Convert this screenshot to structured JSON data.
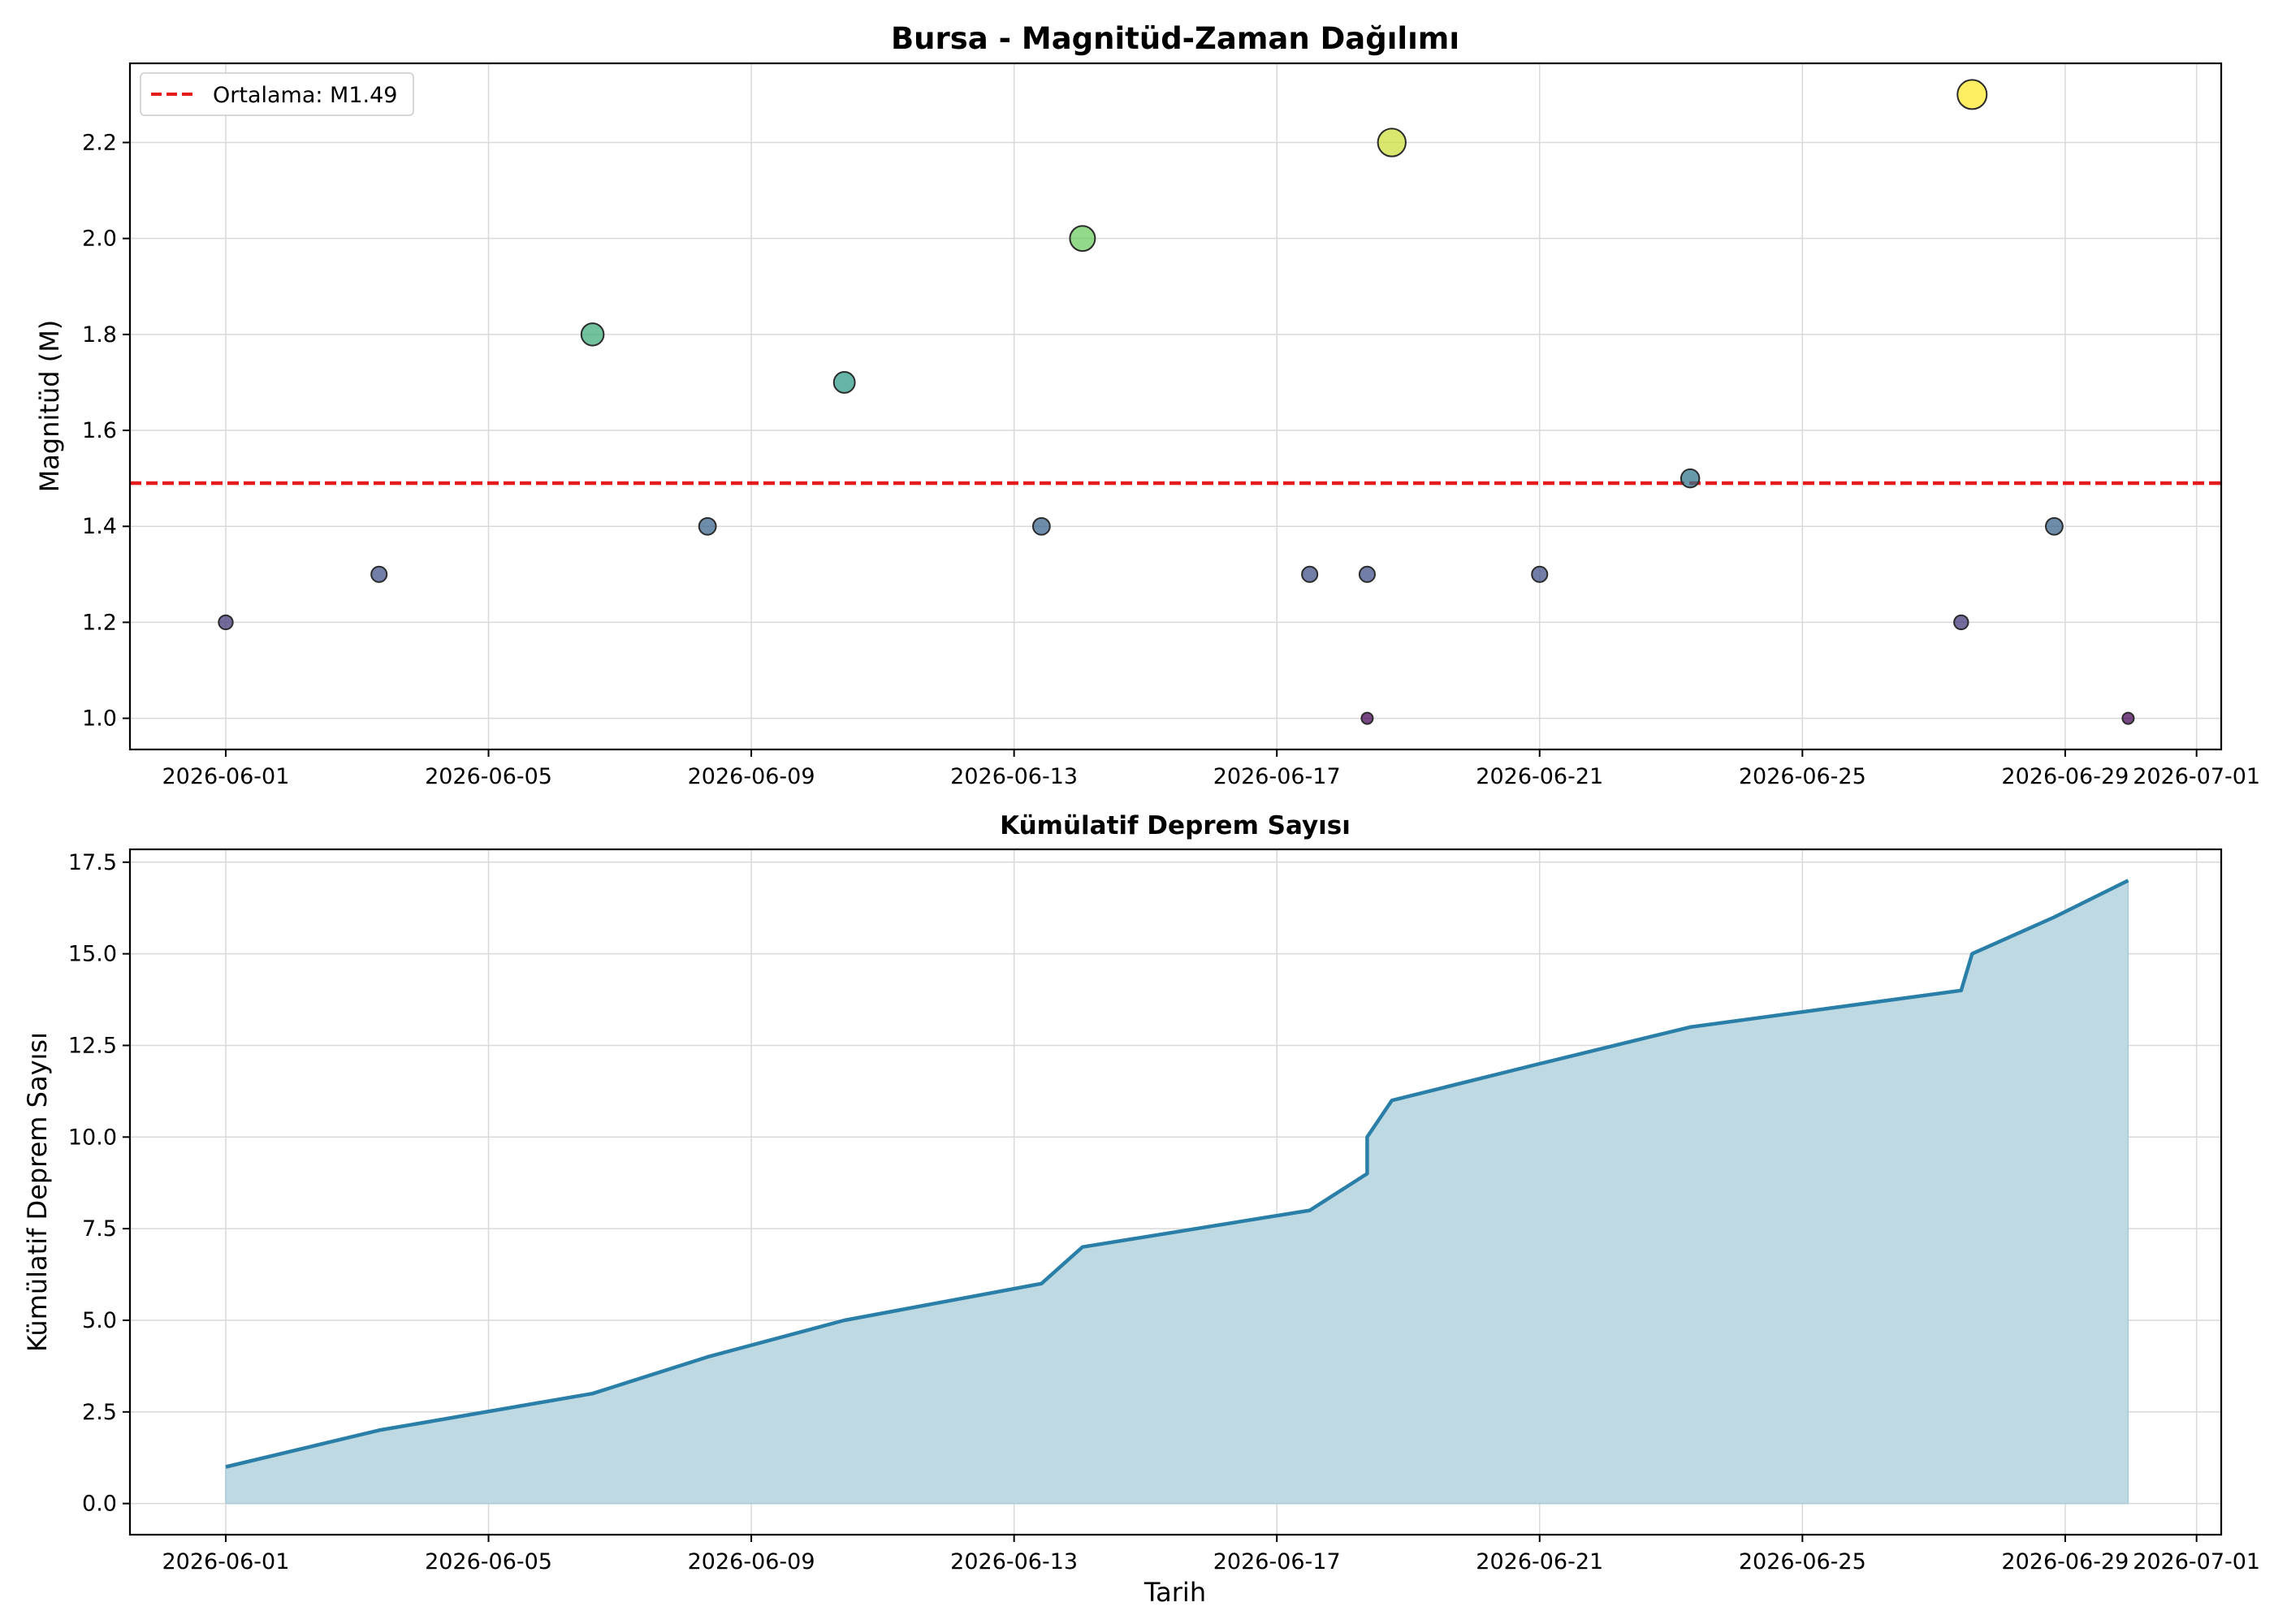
{
  "chart_data": [
    {
      "type": "scatter",
      "title": "Bursa - Magnitüd-Zaman Dağılımı",
      "xlabel": "",
      "ylabel": "Magnitüd (M)",
      "x_ticks": [
        "2026-06-01",
        "2026-06-05",
        "2026-06-09",
        "2026-06-13",
        "2026-06-17",
        "2026-06-21",
        "2026-06-25",
        "2026-06-29",
        "2026-07-01"
      ],
      "y_ticks": [
        "1.0",
        "1.2",
        "1.4",
        "1.6",
        "1.8",
        "2.0",
        "2.2"
      ],
      "xlim": [
        "2026-05-30T13:00",
        "2026-07-01T09:00"
      ],
      "ylim": [
        0.935,
        2.365
      ],
      "grid": true,
      "legend_position": "top-left",
      "mean_line": {
        "label": "Ortalama: M1.49",
        "value": 1.49,
        "color": "#e41a1c"
      },
      "colormap": "viridis",
      "points": [
        {
          "x": "2026-06-01T00:00",
          "y": 1.2
        },
        {
          "x": "2026-06-03T08:00",
          "y": 1.3
        },
        {
          "x": "2026-06-06T14:00",
          "y": 1.8
        },
        {
          "x": "2026-06-08T08:00",
          "y": 1.4
        },
        {
          "x": "2026-06-10T10:00",
          "y": 1.7
        },
        {
          "x": "2026-06-13T10:00",
          "y": 1.4
        },
        {
          "x": "2026-06-14T01:00",
          "y": 2.0
        },
        {
          "x": "2026-06-17T12:00",
          "y": 1.3
        },
        {
          "x": "2026-06-18T09:00",
          "y": 1.3
        },
        {
          "x": "2026-06-18T09:00",
          "y": 1.0
        },
        {
          "x": "2026-06-18T18:00",
          "y": 2.2
        },
        {
          "x": "2026-06-21T00:00",
          "y": 1.3
        },
        {
          "x": "2026-06-23T07:00",
          "y": 1.5
        },
        {
          "x": "2026-06-27T10:00",
          "y": 1.2
        },
        {
          "x": "2026-06-27T14:00",
          "y": 2.3
        },
        {
          "x": "2026-06-28T20:00",
          "y": 1.4
        },
        {
          "x": "2026-06-29T23:00",
          "y": 1.0
        }
      ]
    },
    {
      "type": "area",
      "title": "Kümülatif Deprem Sayısı",
      "xlabel": "Tarih",
      "ylabel": "Kümülatif Deprem Sayısı",
      "x_ticks": [
        "2026-06-01",
        "2026-06-05",
        "2026-06-09",
        "2026-06-13",
        "2026-06-17",
        "2026-06-21",
        "2026-06-25",
        "2026-06-29",
        "2026-07-01"
      ],
      "y_ticks": [
        "0.0",
        "2.5",
        "5.0",
        "7.5",
        "10.0",
        "12.5",
        "15.0",
        "17.5"
      ],
      "xlim": [
        "2026-05-30T13:00",
        "2026-07-01T09:00"
      ],
      "ylim": [
        -0.85,
        17.85
      ],
      "grid": true,
      "line_color": "#2a7fa8",
      "fill_color": "#bfd9e3",
      "x": [
        "2026-06-01T00:00",
        "2026-06-03T08:00",
        "2026-06-06T14:00",
        "2026-06-08T08:00",
        "2026-06-10T10:00",
        "2026-06-13T10:00",
        "2026-06-14T01:00",
        "2026-06-17T12:00",
        "2026-06-18T09:00",
        "2026-06-18T09:00",
        "2026-06-18T18:00",
        "2026-06-21T00:00",
        "2026-06-23T07:00",
        "2026-06-27T10:00",
        "2026-06-27T14:00",
        "2026-06-28T20:00",
        "2026-06-29T23:00"
      ],
      "values": [
        1,
        2,
        3,
        4,
        5,
        6,
        7,
        8,
        9,
        10,
        11,
        12,
        13,
        14,
        15,
        16,
        17
      ]
    }
  ]
}
